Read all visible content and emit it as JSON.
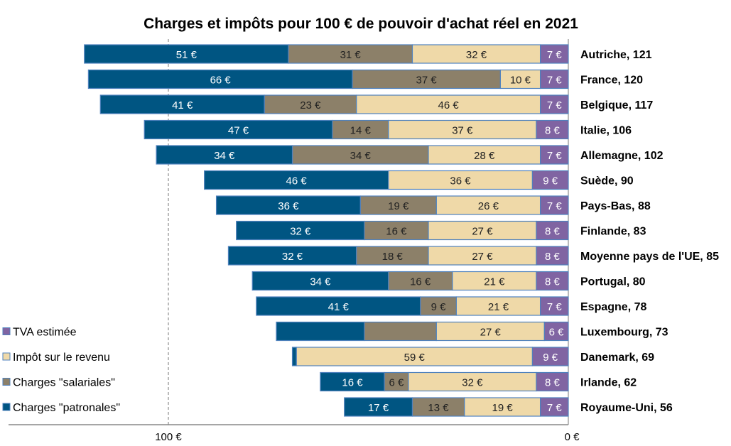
{
  "chart_data": {
    "type": "bar",
    "orientation": "horizontal-stacked",
    "title": "Charges et impôts pour 100 € de pouvoir d'achat réel en 2021",
    "x_direction": "reversed",
    "xlim": [
      0,
      125
    ],
    "x_ticks": [
      {
        "value": 100,
        "label": "100 €"
      },
      {
        "value": 0,
        "label": "0 €"
      }
    ],
    "reference_line": {
      "value": 100,
      "style": "dashed"
    },
    "legend_placement": "bottom-left",
    "unit_suffix": " €",
    "categories": [
      "Autriche, 121",
      "France, 120",
      "Belgique, 117",
      "Italie, 106",
      "Allemagne, 102",
      "Suède, 90",
      "Pays-Bas, 88",
      "Finlande, 83",
      "Moyenne pays de l'UE, 85",
      "Portugal, 80",
      "Espagne, 78",
      "Luxembourg, 73",
      "Danemark, 69",
      "Irlande, 62",
      "Royaume-Uni, 56"
    ],
    "series": [
      {
        "name": "TVA estimée",
        "color": "#8064a2",
        "label_color": "#ffffff",
        "values": [
          7,
          7,
          7,
          8,
          7,
          9,
          7,
          8,
          8,
          8,
          7,
          6,
          9,
          8,
          7
        ],
        "labeled": [
          true,
          true,
          true,
          true,
          true,
          true,
          true,
          true,
          true,
          true,
          true,
          true,
          true,
          true,
          true
        ]
      },
      {
        "name": "Impôt sur le revenu",
        "color": "#efd9a8",
        "label_color": "#222222",
        "values": [
          32,
          10,
          46,
          37,
          28,
          36,
          26,
          27,
          27,
          21,
          21,
          27,
          59,
          32,
          19
        ],
        "labeled": [
          true,
          true,
          true,
          true,
          true,
          true,
          true,
          true,
          true,
          true,
          true,
          true,
          true,
          true,
          true
        ]
      },
      {
        "name": "Charges \"salariales\"",
        "color": "#8c8069",
        "label_color": "#222222",
        "values": [
          31,
          37,
          23,
          14,
          34,
          0,
          19,
          16,
          18,
          16,
          9,
          18,
          0,
          6,
          13
        ],
        "labeled": [
          true,
          true,
          true,
          true,
          true,
          false,
          true,
          true,
          true,
          true,
          true,
          false,
          false,
          true,
          true
        ]
      },
      {
        "name": "Charges \"patronales\"",
        "color": "#005582",
        "label_color": "#ffffff",
        "values": [
          51,
          66,
          41,
          47,
          34,
          46,
          36,
          32,
          32,
          34,
          41,
          22,
          1,
          16,
          17
        ],
        "labeled": [
          true,
          true,
          true,
          true,
          true,
          true,
          true,
          true,
          true,
          true,
          true,
          false,
          false,
          true,
          true
        ]
      }
    ]
  }
}
